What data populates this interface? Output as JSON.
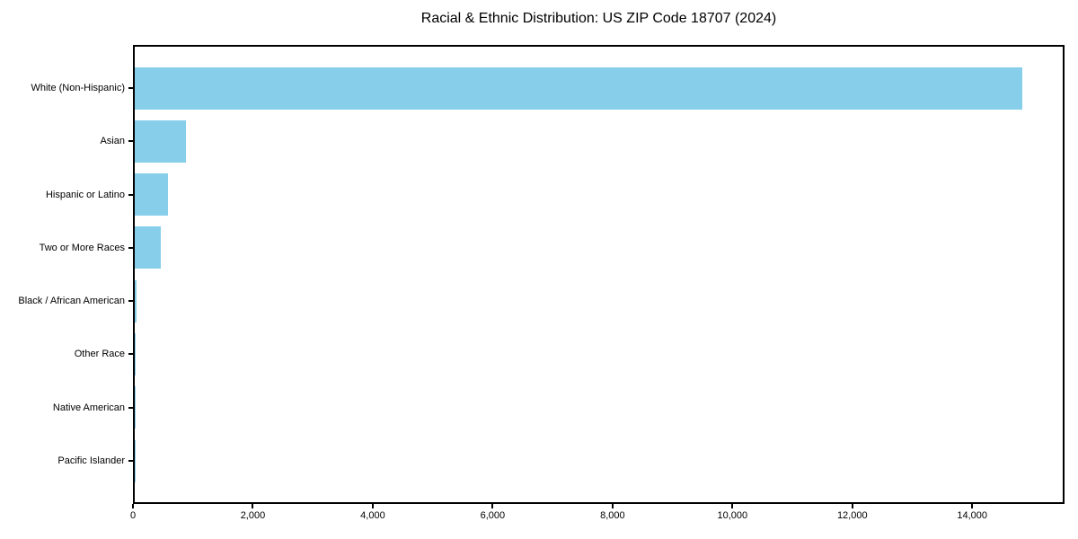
{
  "chart_data": {
    "type": "bar",
    "orientation": "horizontal",
    "title": "Racial & Ethnic Distribution: US ZIP Code 18707 (2024)",
    "categories": [
      "White (Non-Hispanic)",
      "Asian",
      "Hispanic or Latino",
      "Two or More Races",
      "Black / African American",
      "Other Race",
      "Native American",
      "Pacific Islander"
    ],
    "values": [
      14800,
      850,
      560,
      430,
      35,
      20,
      8,
      2
    ],
    "xlabel": "",
    "ylabel": "",
    "xlim": [
      0,
      15540
    ],
    "xtick_values": [
      0,
      2000,
      4000,
      6000,
      8000,
      10000,
      12000,
      14000
    ],
    "xtick_labels": [
      "0",
      "2,000",
      "4,000",
      "6,000",
      "8,000",
      "10,000",
      "12,000",
      "14,000"
    ],
    "bar_color": "#87CEEB",
    "axis_color": "#000000",
    "text_color": "#000000",
    "background_color": "#ffffff",
    "grid": false,
    "legend": false
  }
}
